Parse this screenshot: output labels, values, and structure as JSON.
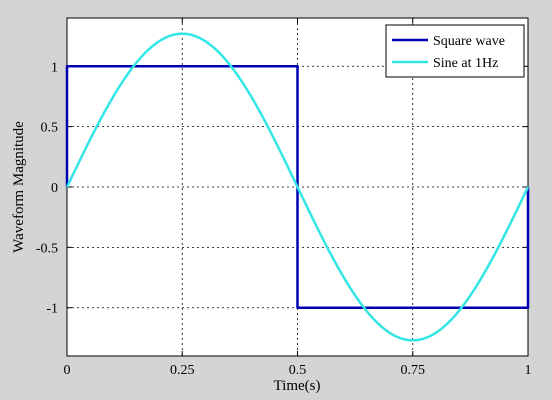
{
  "chart_data": {
    "type": "line",
    "title": "",
    "xlabel": "Time(s)",
    "ylabel": "Waveform Magnitude",
    "xlim": [
      0,
      1
    ],
    "ylim": [
      -1.4,
      1.4
    ],
    "xticks": [
      0,
      0.25,
      0.5,
      0.75,
      1
    ],
    "xtick_labels": [
      "0",
      "0.25",
      "0.5",
      "0.75",
      "1"
    ],
    "yticks": [
      -1,
      -0.5,
      0,
      0.5,
      1
    ],
    "ytick_labels": [
      "-1",
      "-0.5",
      "0",
      "0.5",
      "1"
    ],
    "grid": true,
    "legend_position": "top-right",
    "series": [
      {
        "name": "Square wave",
        "color": "#0000b3",
        "x": [
          0,
          0,
          0.5,
          0.5,
          1,
          1
        ],
        "y": [
          0,
          1,
          1,
          -1,
          -1,
          0
        ]
      },
      {
        "name": "Sine at 1Hz",
        "color": "#33e6e6",
        "amplitude": 1.27,
        "frequency_hz": 1,
        "x": [
          0,
          0.05,
          0.1,
          0.15,
          0.2,
          0.25,
          0.3,
          0.35,
          0.4,
          0.45,
          0.5,
          0.55,
          0.6,
          0.65,
          0.7,
          0.75,
          0.8,
          0.85,
          0.9,
          0.95,
          1
        ],
        "y": [
          0,
          0.39,
          0.75,
          1.03,
          1.21,
          1.27,
          1.21,
          1.03,
          0.75,
          0.39,
          0,
          -0.39,
          -0.75,
          -1.03,
          -1.21,
          -1.27,
          -1.21,
          -1.03,
          -0.75,
          -0.39,
          0
        ]
      }
    ]
  }
}
